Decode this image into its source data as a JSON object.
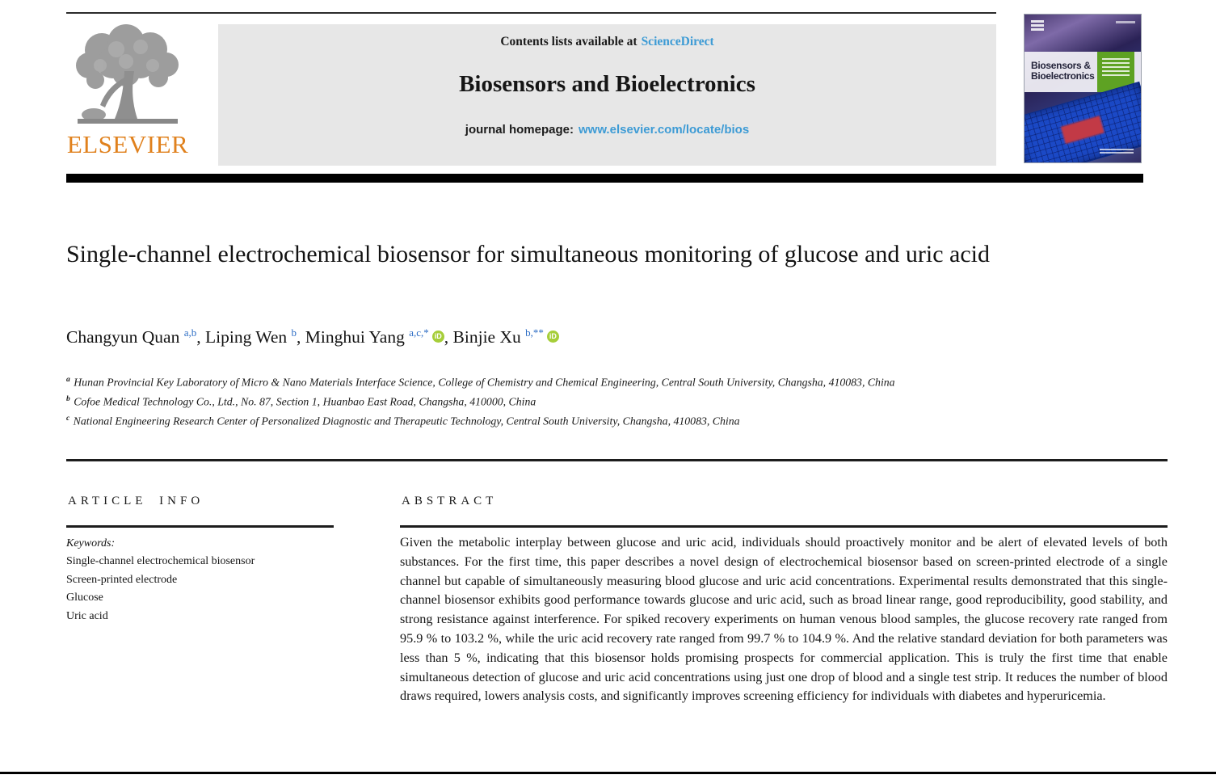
{
  "publisher": {
    "name": "ELSEVIER"
  },
  "banner": {
    "contents_prefix": "Contents lists available at",
    "contents_link": "ScienceDirect",
    "journal_title": "Biosensors and Bioelectronics",
    "homepage_label": "journal homepage:",
    "homepage_url": "www.elsevier.com/locate/bios"
  },
  "cover": {
    "title_line1": "Biosensors &",
    "title_line2": "Bioelectronics"
  },
  "article": {
    "title": "Single-channel electrochemical biosensor for simultaneous monitoring of glucose and uric acid",
    "orcid_icon_label": "iD",
    "authors": [
      {
        "name": "Changyun Quan",
        "sup": "a,b",
        "orcid": false
      },
      {
        "name": "Liping Wen",
        "sup": "b",
        "orcid": false
      },
      {
        "name": "Minghui Yang",
        "sup": "a,c,*",
        "orcid": true
      },
      {
        "name": "Binjie Xu",
        "sup": "b,**",
        "orcid": true
      }
    ],
    "affiliations": [
      {
        "sup": "a",
        "text": "Hunan Provincial Key Laboratory of Micro & Nano Materials Interface Science, College of Chemistry and Chemical Engineering, Central South University, Changsha, 410083, China"
      },
      {
        "sup": "b",
        "text": "Cofoe Medical Technology Co., Ltd., No. 87, Section 1, Huanbao East Road, Changsha, 410000, China"
      },
      {
        "sup": "c",
        "text": "National Engineering Research Center of Personalized Diagnostic and Therapeutic Technology, Central South University, Changsha, 410083, China"
      }
    ]
  },
  "article_info": {
    "heading": "ARTICLE INFO",
    "keywords_label": "Keywords:",
    "keywords": [
      "Single-channel electrochemical biosensor",
      "Screen-printed electrode",
      "Glucose",
      "Uric acid"
    ]
  },
  "abstract": {
    "heading": "ABSTRACT",
    "text": "Given the metabolic interplay between glucose and uric acid, individuals should proactively monitor and be alert of elevated levels of both substances. For the first time, this paper describes a novel design of electrochemical biosensor based on screen-printed electrode of a single channel but capable of simultaneously measuring blood glucose and uric acid concentrations. Experimental results demonstrated that this single-channel biosensor exhibits good performance towards glucose and uric acid, such as broad linear range, good reproducibility, good stability, and strong resistance against interference. For spiked recovery experiments on human venous blood samples, the glucose recovery rate ranged from 95.9 % to 103.2 %, while the uric acid recovery rate ranged from 99.7 % to 104.9 %. And the relative standard deviation for both parameters was less than 5 %, indicating that this biosensor holds promising prospects for commercial application. This is truly the first time that enable simultaneous detection of glucose and uric acid concentrations using just one drop of blood and a single test strip. It reduces the number of blood draws required, lowers analysis costs, and significantly improves screening efficiency for individuals with diabetes and hyperuricemia."
  },
  "colors": {
    "link_blue": "#3d9bd5",
    "superscript_blue": "#2c6cc4",
    "orcid_green": "#a6ce39",
    "elsevier_orange": "#e0811d",
    "banner_gray": "#e7e7e7",
    "cover_green": "#5ea223",
    "pcb_blue": "#1b49c6",
    "pcb_red": "#c23a46"
  }
}
